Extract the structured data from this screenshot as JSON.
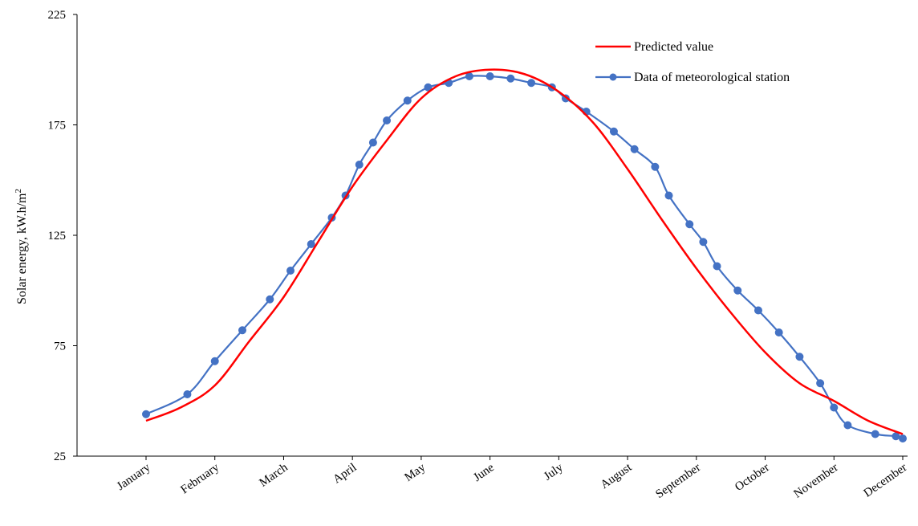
{
  "chart_data": {
    "type": "line",
    "title": "",
    "ylabel": "Solar energy, kW.h/m",
    "ylabel_superscript": "2",
    "xlabel": "",
    "ylim": [
      25,
      225
    ],
    "yticks": [
      25,
      75,
      125,
      175,
      225
    ],
    "grid": false,
    "legend_position": "top-right",
    "categories": [
      "January",
      "February",
      "March",
      "April",
      "May",
      "June",
      "July",
      "August",
      "September",
      "October",
      "November",
      "December"
    ],
    "series": [
      {
        "name": "Predicted value",
        "color": "#ff0000",
        "marker": "none",
        "x": [
          0,
          0.5,
          1,
          1.5,
          2,
          2.5,
          3,
          3.5,
          4,
          4.5,
          5,
          5.5,
          6,
          6.5,
          7,
          7.5,
          8,
          8.5,
          9,
          9.5,
          10,
          10.5,
          11
        ],
        "values": [
          41,
          47,
          57,
          77,
          97,
          122,
          147,
          168,
          187,
          197,
          200,
          198,
          190,
          176,
          155,
          132,
          110,
          90,
          72,
          58,
          50,
          41,
          35
        ]
      },
      {
        "name": "Data of meteorological station",
        "color": "#4472c4",
        "marker": "circle",
        "x": [
          0,
          0.6,
          1,
          1.4,
          1.8,
          2.1,
          2.4,
          2.7,
          2.9,
          3.1,
          3.3,
          3.5,
          3.8,
          4.1,
          4.4,
          4.7,
          5,
          5.3,
          5.6,
          5.9,
          6.1,
          6.4,
          6.8,
          7.1,
          7.4,
          7.6,
          7.9,
          8.1,
          8.3,
          8.6,
          8.9,
          9.2,
          9.5,
          9.8,
          10,
          10.2,
          10.6,
          10.9,
          11
        ],
        "values": [
          44,
          53,
          68,
          82,
          96,
          109,
          121,
          133,
          143,
          157,
          167,
          177,
          186,
          192,
          194,
          197,
          197,
          196,
          194,
          192,
          187,
          181,
          172,
          164,
          156,
          143,
          130,
          122,
          111,
          100,
          91,
          81,
          70,
          58,
          47,
          39,
          35,
          34,
          33
        ]
      }
    ]
  }
}
